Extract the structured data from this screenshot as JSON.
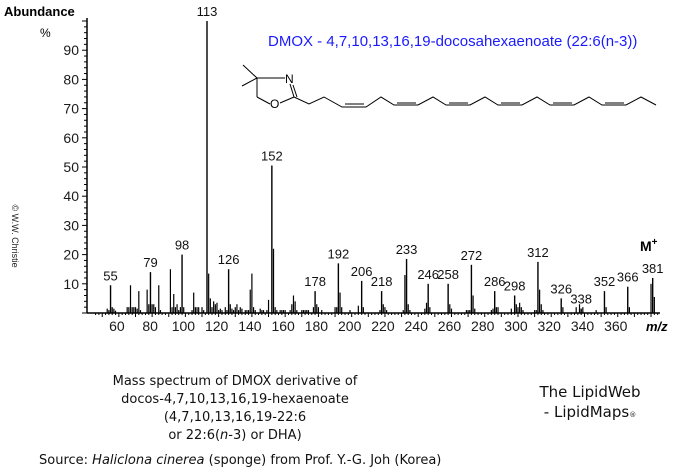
{
  "chart_data": {
    "type": "bar",
    "title": "DMOX - 4,7,10,13,16,19-docosahexaenoate (22:6(n-3))",
    "xlabel": "m/z",
    "ylabel": "Abundance %",
    "xlim": [
      45,
      385
    ],
    "ylim": [
      0,
      100
    ],
    "xticks": [
      60,
      80,
      100,
      120,
      140,
      160,
      180,
      200,
      220,
      240,
      260,
      280,
      300,
      320,
      340,
      360
    ],
    "yticks": [
      10,
      20,
      30,
      40,
      50,
      60,
      70,
      80,
      90
    ],
    "molecular_ion_label": "M+",
    "labeled_peaks": [
      {
        "mz": 55,
        "abundance": 9.5
      },
      {
        "mz": 79,
        "abundance": 14
      },
      {
        "mz": 98,
        "abundance": 20
      },
      {
        "mz": 113,
        "abundance": 100
      },
      {
        "mz": 126,
        "abundance": 15
      },
      {
        "mz": 152,
        "abundance": 50.5
      },
      {
        "mz": 178,
        "abundance": 7.5
      },
      {
        "mz": 192,
        "abundance": 17
      },
      {
        "mz": 206,
        "abundance": 11
      },
      {
        "mz": 218,
        "abundance": 7.5
      },
      {
        "mz": 233,
        "abundance": 18.5
      },
      {
        "mz": 246,
        "abundance": 10
      },
      {
        "mz": 258,
        "abundance": 10
      },
      {
        "mz": 272,
        "abundance": 16.5
      },
      {
        "mz": 286,
        "abundance": 7.5
      },
      {
        "mz": 298,
        "abundance": 6
      },
      {
        "mz": 312,
        "abundance": 17.5
      },
      {
        "mz": 326,
        "abundance": 5
      },
      {
        "mz": 338,
        "abundance": 1.5
      },
      {
        "mz": 352,
        "abundance": 7.5
      },
      {
        "mz": 366,
        "abundance": 9
      },
      {
        "mz": 381,
        "abundance": 12
      }
    ],
    "minor_peaks": [
      [
        53,
        1.5
      ],
      [
        54,
        1
      ],
      [
        56,
        2
      ],
      [
        57,
        1.5
      ],
      [
        58,
        0.8
      ],
      [
        65,
        2
      ],
      [
        66,
        2
      ],
      [
        67,
        9.5
      ],
      [
        68,
        2
      ],
      [
        69,
        2
      ],
      [
        70,
        2
      ],
      [
        71,
        1.5
      ],
      [
        72,
        7.5
      ],
      [
        73,
        1
      ],
      [
        77,
        8
      ],
      [
        78,
        3
      ],
      [
        80,
        3
      ],
      [
        81,
        3
      ],
      [
        82,
        2
      ],
      [
        84,
        9.5
      ],
      [
        85,
        1
      ],
      [
        91,
        15
      ],
      [
        92,
        2
      ],
      [
        93,
        6.5
      ],
      [
        94,
        2
      ],
      [
        95,
        3
      ],
      [
        96,
        1
      ],
      [
        97,
        2
      ],
      [
        99,
        2
      ],
      [
        104,
        1
      ],
      [
        105,
        7
      ],
      [
        106,
        2
      ],
      [
        107,
        2
      ],
      [
        108,
        2
      ],
      [
        110,
        2
      ],
      [
        111,
        1
      ],
      [
        114,
        13.5
      ],
      [
        115,
        5
      ],
      [
        116,
        2
      ],
      [
        117,
        4
      ],
      [
        118,
        3
      ],
      [
        119,
        3.5
      ],
      [
        120,
        1
      ],
      [
        121,
        1.5
      ],
      [
        122,
        1
      ],
      [
        124,
        2
      ],
      [
        125,
        1
      ],
      [
        127,
        3
      ],
      [
        128,
        1.5
      ],
      [
        129,
        1
      ],
      [
        130,
        2
      ],
      [
        131,
        3
      ],
      [
        132,
        1
      ],
      [
        133,
        2
      ],
      [
        134,
        1.5
      ],
      [
        136,
        1
      ],
      [
        137,
        1
      ],
      [
        138,
        1
      ],
      [
        139,
        8
      ],
      [
        140,
        13.5
      ],
      [
        141,
        2
      ],
      [
        142,
        1
      ],
      [
        145,
        1.5
      ],
      [
        146,
        1
      ],
      [
        147,
        1
      ],
      [
        149,
        1
      ],
      [
        150,
        4.5
      ],
      [
        153,
        22
      ],
      [
        154,
        2
      ],
      [
        155,
        1
      ],
      [
        157,
        1
      ],
      [
        158,
        1
      ],
      [
        159,
        1
      ],
      [
        160,
        1
      ],
      [
        163,
        1
      ],
      [
        164,
        3
      ],
      [
        165,
        6
      ],
      [
        166,
        4
      ],
      [
        167,
        1
      ],
      [
        170,
        1
      ],
      [
        171,
        1
      ],
      [
        172,
        1
      ],
      [
        173,
        1
      ],
      [
        174,
        1
      ],
      [
        177,
        2
      ],
      [
        179,
        3
      ],
      [
        180,
        2
      ],
      [
        182,
        1
      ],
      [
        190,
        2
      ],
      [
        191,
        2
      ],
      [
        193,
        7
      ],
      [
        194,
        2
      ],
      [
        199,
        1
      ],
      [
        204,
        2.5
      ],
      [
        207,
        2
      ],
      [
        217,
        1
      ],
      [
        219,
        3
      ],
      [
        220,
        2
      ],
      [
        221,
        1
      ],
      [
        231,
        1
      ],
      [
        232,
        13
      ],
      [
        234,
        3
      ],
      [
        235,
        1
      ],
      [
        244,
        1.5
      ],
      [
        245,
        3.5
      ],
      [
        247,
        2
      ],
      [
        259,
        3
      ],
      [
        260,
        1.5
      ],
      [
        269,
        1
      ],
      [
        270,
        1
      ],
      [
        271,
        1
      ],
      [
        273,
        6
      ],
      [
        274,
        1.5
      ],
      [
        284,
        1
      ],
      [
        285,
        1.5
      ],
      [
        287,
        2
      ],
      [
        288,
        2
      ],
      [
        296,
        1.5
      ],
      [
        299,
        3
      ],
      [
        300,
        2
      ],
      [
        301,
        3.5
      ],
      [
        302,
        2
      ],
      [
        303,
        1
      ],
      [
        310,
        1
      ],
      [
        311,
        1
      ],
      [
        313,
        8
      ],
      [
        314,
        3
      ],
      [
        315,
        1
      ],
      [
        327,
        2
      ],
      [
        335,
        2
      ],
      [
        337,
        3
      ],
      [
        339,
        2
      ],
      [
        347,
        1
      ],
      [
        353,
        2
      ],
      [
        367,
        2
      ],
      [
        380,
        10
      ],
      [
        382,
        5.5
      ]
    ]
  },
  "axes": {
    "ylabel_top": "Abundance",
    "ylabel_unit": "%",
    "xlabel": "m/z",
    "ion_label": "M",
    "ion_sup": "+"
  },
  "copyright": "© W.W. Christie",
  "caption": {
    "line1": "Mass spectrum of DMOX derivative of",
    "line2": "docos-4,7,10,13,16,19-hexaenoate  (4,7,10,13,16,19-22:6",
    "line3_a": "or 22:6(",
    "line3_n": "n",
    "line3_b": "-3) or DHA)"
  },
  "brand": {
    "line1": "The LipidWeb",
    "line2": "- LipidMaps",
    "reg": "®"
  },
  "source": {
    "prefix": "Source: ",
    "species": "Haliclona cinerea",
    "suffix": " (sponge) from Prof. Y.-G. Joh (Korea)"
  },
  "colors": {
    "title": "#1a1aff",
    "axis": "#000000",
    "bars": "#000000",
    "tick_labels": "#1a1a1a"
  },
  "structure": {
    "atom_n": "N",
    "atom_o": "O"
  }
}
